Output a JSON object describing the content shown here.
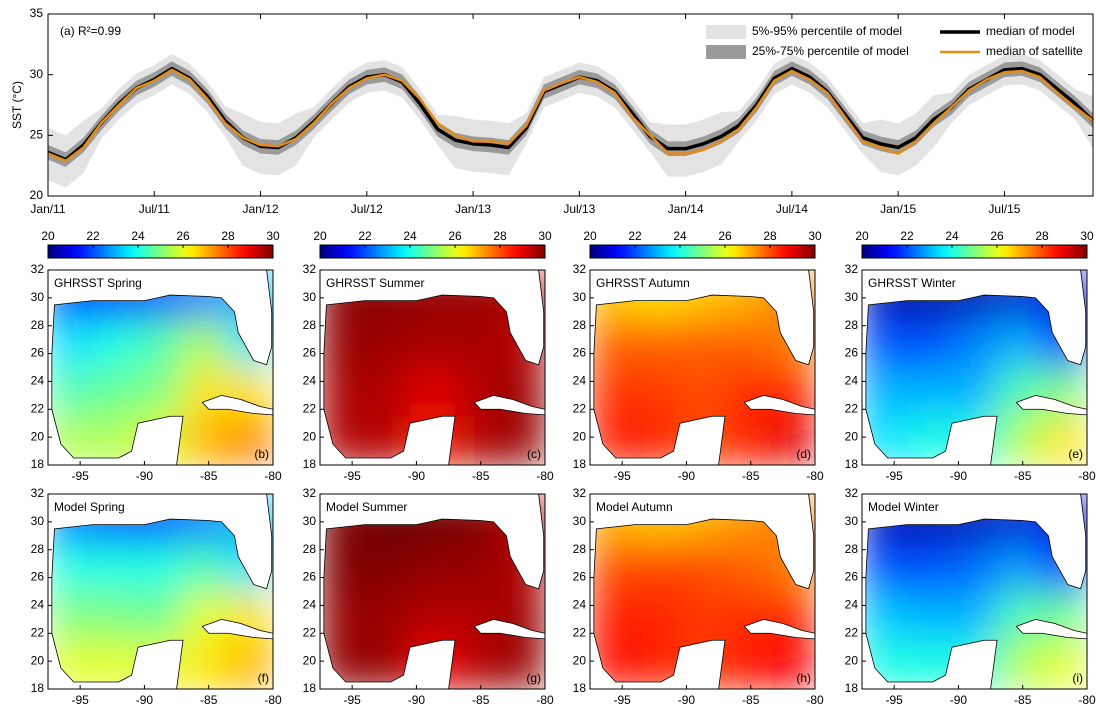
{
  "chart_data": [
    {
      "type": "line",
      "ylabel": "SST (°C)",
      "annotation": "(a) R²=0.99",
      "x": [
        0,
        1,
        2,
        3,
        4,
        5,
        6,
        7,
        8,
        9,
        10,
        11,
        12,
        13,
        14,
        15,
        16,
        17,
        18,
        19,
        20,
        21,
        22,
        23,
        24,
        25,
        26,
        27,
        28,
        29,
        30,
        31,
        32,
        33,
        34,
        35,
        36,
        37,
        38,
        39,
        40,
        41,
        42,
        43,
        44,
        45,
        46,
        47,
        48,
        49,
        50,
        51,
        52,
        53,
        54,
        55,
        56,
        57,
        58,
        59
      ],
      "xlim": [
        0,
        59
      ],
      "xticks": [
        {
          "value": 0,
          "label": "Jan/11"
        },
        {
          "value": 6,
          "label": "Jul/11"
        },
        {
          "value": 12,
          "label": "Jan/12"
        },
        {
          "value": 18,
          "label": "Jul/12"
        },
        {
          "value": 24,
          "label": "Jan/13"
        },
        {
          "value": 30,
          "label": "Jul/13"
        },
        {
          "value": 36,
          "label": "Jan/14"
        },
        {
          "value": 42,
          "label": "Jul/14"
        },
        {
          "value": 48,
          "label": "Jan/15"
        },
        {
          "value": 54,
          "label": "Jul/15"
        }
      ],
      "ylim": [
        20,
        35
      ],
      "yticks": [
        20,
        25,
        30,
        35
      ],
      "bands": [
        {
          "name": "5%-95% percentile of model",
          "color": "#e3e3e3",
          "lower": [
            21.3,
            20.7,
            21.9,
            24.7,
            26.3,
            27.6,
            28.3,
            29.2,
            28.4,
            26.9,
            24.9,
            22.5,
            21.8,
            21.7,
            22.5,
            24.8,
            26.3,
            27.7,
            28.5,
            28.7,
            28.1,
            26.3,
            24.2,
            22.3,
            22.0,
            21.9,
            21.7,
            24.3,
            27.3,
            27.9,
            28.5,
            28.2,
            27.3,
            25.5,
            23.6,
            21.6,
            21.6,
            22.0,
            22.6,
            24.5,
            26.2,
            28.4,
            29.2,
            28.5,
            27.3,
            25.4,
            23.5,
            22.0,
            21.7,
            22.5,
            24.0,
            26.0,
            27.5,
            28.3,
            29.1,
            29.2,
            28.7,
            27.5,
            26.3,
            23.9
          ],
          "upper": [
            25.6,
            25.0,
            26.2,
            27.2,
            28.8,
            30.1,
            30.8,
            31.7,
            30.9,
            29.4,
            27.4,
            26.8,
            26.1,
            26.0,
            26.8,
            27.3,
            28.8,
            30.2,
            31.0,
            31.2,
            30.6,
            28.8,
            26.7,
            26.6,
            26.3,
            26.2,
            26.0,
            26.8,
            29.8,
            30.4,
            31.0,
            30.7,
            29.8,
            28.0,
            26.1,
            25.9,
            25.9,
            26.3,
            26.9,
            27.0,
            28.7,
            30.9,
            31.7,
            31.0,
            29.8,
            27.9,
            26.0,
            26.3,
            26.0,
            26.8,
            28.3,
            28.5,
            30.0,
            30.8,
            31.6,
            31.7,
            31.2,
            30.0,
            28.8,
            28.2
          ]
        },
        {
          "name": "25%-75% percentile of model",
          "color": "#9a9a9a",
          "lower": [
            23.0,
            22.4,
            23.6,
            25.4,
            27.0,
            28.3,
            29.0,
            29.9,
            29.1,
            27.6,
            25.6,
            24.2,
            23.5,
            23.4,
            24.2,
            25.5,
            27.0,
            28.4,
            29.2,
            29.4,
            28.8,
            27.0,
            24.9,
            24.0,
            23.7,
            23.6,
            23.4,
            25.0,
            28.0,
            28.6,
            29.2,
            28.9,
            28.0,
            26.2,
            24.3,
            23.3,
            23.3,
            23.7,
            24.3,
            25.2,
            26.9,
            29.1,
            29.9,
            29.2,
            28.0,
            26.1,
            24.2,
            23.7,
            23.4,
            24.2,
            25.7,
            26.7,
            28.2,
            29.0,
            29.8,
            29.9,
            29.4,
            28.2,
            27.0,
            25.6
          ],
          "upper": [
            24.2,
            23.6,
            24.8,
            26.6,
            28.2,
            29.5,
            30.2,
            31.1,
            30.3,
            28.8,
            26.8,
            25.4,
            24.7,
            24.6,
            25.4,
            26.7,
            28.2,
            29.6,
            30.4,
            30.6,
            30.0,
            28.2,
            26.1,
            25.2,
            24.9,
            24.8,
            24.6,
            26.2,
            29.2,
            29.8,
            30.4,
            30.1,
            29.2,
            27.4,
            25.5,
            24.5,
            24.5,
            24.9,
            25.5,
            26.4,
            28.1,
            30.3,
            31.1,
            30.4,
            29.2,
            27.3,
            25.4,
            24.9,
            24.6,
            25.4,
            26.9,
            27.9,
            29.4,
            30.2,
            31.0,
            31.1,
            30.6,
            29.4,
            28.2,
            26.8
          ]
        }
      ],
      "series": [
        {
          "name": "median of model",
          "color": "#000000",
          "values": [
            23.6,
            23.0,
            24.2,
            26.0,
            27.6,
            28.9,
            29.6,
            30.5,
            29.7,
            28.2,
            26.2,
            24.8,
            24.1,
            24.0,
            24.8,
            26.1,
            27.6,
            29.0,
            29.8,
            30.0,
            29.4,
            27.6,
            25.5,
            24.6,
            24.3,
            24.2,
            24.0,
            25.6,
            28.6,
            29.2,
            29.8,
            29.5,
            28.6,
            26.8,
            24.9,
            23.9,
            23.9,
            24.3,
            24.9,
            25.8,
            27.5,
            29.7,
            30.5,
            29.8,
            28.6,
            26.7,
            24.8,
            24.3,
            24.0,
            24.8,
            26.3,
            27.3,
            28.8,
            29.6,
            30.4,
            30.5,
            30.0,
            28.8,
            27.6,
            26.2
          ]
        },
        {
          "name": "median of satellite",
          "color": "#e58b17",
          "values": [
            23.5,
            22.9,
            24.0,
            26.0,
            27.5,
            28.9,
            29.5,
            30.4,
            29.6,
            28.0,
            26.0,
            24.8,
            24.2,
            24.1,
            24.7,
            26.0,
            27.6,
            28.9,
            29.7,
            30.0,
            29.5,
            28.0,
            26.0,
            25.0,
            24.5,
            24.5,
            24.3,
            25.8,
            28.7,
            29.3,
            29.8,
            29.4,
            28.5,
            26.5,
            25.0,
            23.5,
            23.5,
            23.8,
            24.5,
            25.5,
            27.3,
            29.5,
            30.3,
            29.6,
            28.5,
            26.5,
            24.5,
            24.0,
            23.5,
            24.5,
            26.0,
            27.3,
            28.7,
            29.6,
            30.2,
            30.3,
            29.8,
            28.5,
            27.3,
            26.2
          ]
        }
      ]
    },
    {
      "type": "heatmap",
      "title": "GHRSST Spring",
      "panel_label": "(b)",
      "colormap": "jet",
      "colorbar": {
        "lim": [
          20,
          30
        ],
        "ticks": [
          20,
          22,
          24,
          26,
          28,
          30
        ]
      },
      "x": [
        -95.75,
        -92.25,
        -88.75,
        -85.25,
        -81.75
      ],
      "y": [
        19.75,
        23.25,
        26.75,
        30.25
      ],
      "z": [
        [
          25.5,
          25.5,
          26,
          27,
          27.5
        ],
        [
          24.5,
          24.8,
          25,
          26.5,
          26.5
        ],
        [
          23.5,
          24,
          24.5,
          25.5,
          23.5
        ],
        [
          21.5,
          21.5,
          22,
          22.5,
          23
        ]
      ],
      "xlim": [
        -97.5,
        -80
      ],
      "ylim": [
        18,
        32
      ],
      "xticks": [
        -95,
        -90,
        -85,
        -80
      ],
      "yticks": [
        18,
        20,
        22,
        24,
        26,
        28,
        30,
        32
      ]
    },
    {
      "type": "heatmap",
      "title": "GHRSST Summer",
      "panel_label": "(c)",
      "colormap": "jet",
      "colorbar": {
        "lim": [
          20,
          30
        ],
        "ticks": [
          20,
          22,
          24,
          26,
          28,
          30
        ]
      },
      "x": [
        -95.75,
        -92.25,
        -88.75,
        -85.25,
        -81.75
      ],
      "y": [
        19.75,
        23.25,
        26.75,
        30.25
      ],
      "z": [
        [
          29.5,
          29.5,
          28.5,
          29.5,
          29.8
        ],
        [
          29.6,
          29.5,
          29,
          29.5,
          29.7
        ],
        [
          29.8,
          29.7,
          29.6,
          29.6,
          29.5
        ],
        [
          29.9,
          29.9,
          29.8,
          29.8,
          29.5
        ]
      ],
      "xlim": [
        -97.5,
        -80
      ],
      "ylim": [
        18,
        32
      ],
      "xticks": [
        -95,
        -90,
        -85,
        -80
      ],
      "yticks": [
        18,
        20,
        22,
        24,
        26,
        28,
        30,
        32
      ]
    },
    {
      "type": "heatmap",
      "title": "GHRSST Autumn",
      "panel_label": "(d)",
      "colormap": "jet",
      "colorbar": {
        "lim": [
          20,
          30
        ],
        "ticks": [
          20,
          22,
          24,
          26,
          28,
          30
        ]
      },
      "x": [
        -95.75,
        -92.25,
        -88.75,
        -85.25,
        -81.75
      ],
      "y": [
        19.75,
        23.25,
        26.75,
        30.25
      ],
      "z": [
        [
          28.5,
          28.5,
          28,
          28.5,
          29
        ],
        [
          28.3,
          28.2,
          28,
          28.3,
          28.5
        ],
        [
          27.8,
          27.8,
          27.8,
          27.8,
          27.5
        ],
        [
          26.8,
          26.5,
          26.8,
          27,
          27.5
        ]
      ],
      "xlim": [
        -97.5,
        -80
      ],
      "ylim": [
        18,
        32
      ],
      "xticks": [
        -95,
        -90,
        -85,
        -80
      ],
      "yticks": [
        18,
        20,
        22,
        24,
        26,
        28,
        30,
        32
      ]
    },
    {
      "type": "heatmap",
      "title": "GHRSST Winter",
      "panel_label": "(e)",
      "colormap": "jet",
      "colorbar": {
        "lim": [
          20,
          30
        ],
        "ticks": [
          20,
          22,
          24,
          26,
          28,
          30
        ]
      },
      "x": [
        -95.75,
        -92.25,
        -88.75,
        -85.25,
        -81.75
      ],
      "y": [
        19.75,
        23.25,
        26.75,
        30.25
      ],
      "z": [
        [
          23.5,
          24,
          24,
          25.5,
          26.5
        ],
        [
          23,
          23,
          23,
          24.5,
          25
        ],
        [
          22,
          22,
          22.5,
          23,
          21.5
        ],
        [
          20.5,
          20.3,
          20.5,
          20.8,
          21
        ]
      ],
      "xlim": [
        -97.5,
        -80
      ],
      "ylim": [
        18,
        32
      ],
      "xticks": [
        -95,
        -90,
        -85,
        -80
      ],
      "yticks": [
        18,
        20,
        22,
        24,
        26,
        28,
        30,
        32
      ]
    },
    {
      "type": "heatmap",
      "title": "Model Spring",
      "panel_label": "(f)",
      "colormap": "jet",
      "x": [
        -95.75,
        -92.25,
        -88.75,
        -85.25,
        -81.75
      ],
      "y": [
        19.75,
        23.25,
        26.75,
        30.25
      ],
      "z": [
        [
          26,
          26,
          26,
          26.5,
          27
        ],
        [
          25,
          25,
          24.8,
          26,
          26.5
        ],
        [
          24,
          24,
          24,
          24.5,
          23.5
        ],
        [
          22.5,
          22,
          22,
          22.5,
          23
        ]
      ],
      "xlim": [
        -97.5,
        -80
      ],
      "ylim": [
        18,
        32
      ],
      "xticks": [
        -95,
        -90,
        -85,
        -80
      ],
      "yticks": [
        18,
        20,
        22,
        24,
        26,
        28,
        30,
        32
      ]
    },
    {
      "type": "heatmap",
      "title": "Model Summer",
      "panel_label": "(g)",
      "colormap": "jet",
      "x": [
        -95.75,
        -92.25,
        -88.75,
        -85.25,
        -81.75
      ],
      "y": [
        19.75,
        23.25,
        26.75,
        30.25
      ],
      "z": [
        [
          29.8,
          29.8,
          28.8,
          29.5,
          29.8
        ],
        [
          29.8,
          29.7,
          29.5,
          29.5,
          29.7
        ],
        [
          30,
          30,
          29.8,
          29.8,
          29.5
        ],
        [
          30,
          30.2,
          30.2,
          30,
          29.5
        ]
      ],
      "xlim": [
        -97.5,
        -80
      ],
      "ylim": [
        18,
        32
      ],
      "xticks": [
        -95,
        -90,
        -85,
        -80
      ],
      "yticks": [
        18,
        20,
        22,
        24,
        26,
        28,
        30,
        32
      ]
    },
    {
      "type": "heatmap",
      "title": "Model Autumn",
      "panel_label": "(h)",
      "colormap": "jet",
      "x": [
        -95.75,
        -92.25,
        -88.75,
        -85.25,
        -81.75
      ],
      "y": [
        19.75,
        23.25,
        26.75,
        30.25
      ],
      "z": [
        [
          28.6,
          28.5,
          28.2,
          28.6,
          28.8
        ],
        [
          28.5,
          28.4,
          28.2,
          28.3,
          28.5
        ],
        [
          28,
          28.1,
          28,
          27.8,
          27.5
        ],
        [
          27,
          26.8,
          27,
          27.3,
          27.5
        ]
      ],
      "xlim": [
        -97.5,
        -80
      ],
      "ylim": [
        18,
        32
      ],
      "xticks": [
        -95,
        -90,
        -85,
        -80
      ],
      "yticks": [
        18,
        20,
        22,
        24,
        26,
        28,
        30,
        32
      ]
    },
    {
      "type": "heatmap",
      "title": "Model Winter",
      "panel_label": "(i)",
      "colormap": "jet",
      "x": [
        -95.75,
        -92.25,
        -88.75,
        -85.25,
        -81.75
      ],
      "y": [
        19.75,
        23.25,
        26.75,
        30.25
      ],
      "z": [
        [
          24,
          24,
          24,
          25.5,
          26
        ],
        [
          23.2,
          23,
          23,
          24.5,
          24.8
        ],
        [
          22,
          22,
          22.3,
          22.8,
          21.5
        ],
        [
          20.6,
          20.4,
          20.6,
          20.8,
          21
        ]
      ],
      "xlim": [
        -97.5,
        -80
      ],
      "ylim": [
        18,
        32
      ],
      "xticks": [
        -95,
        -90,
        -85,
        -80
      ],
      "yticks": [
        18,
        20,
        22,
        24,
        26,
        28,
        30,
        32
      ]
    }
  ]
}
